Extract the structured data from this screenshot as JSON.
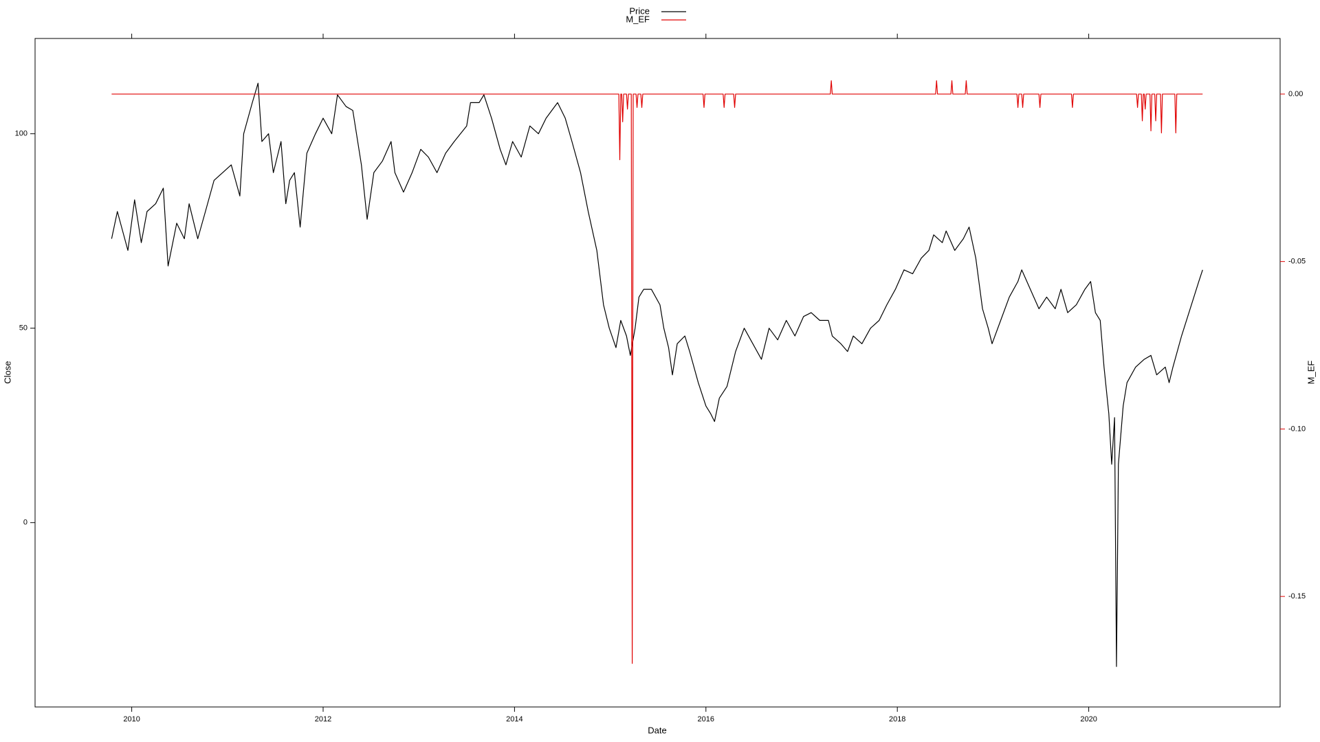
{
  "chart_data": {
    "type": "line",
    "x_label": "Date",
    "y_label": "Close",
    "y2_label": "M_EF",
    "xlim": [
      2008.99,
      2022.0
    ],
    "xticks": [
      2010,
      2012,
      2014,
      2016,
      2018,
      2020
    ],
    "ylim": [
      -47.4,
      124.5
    ],
    "yticks": [
      0,
      50,
      100
    ],
    "y2lim": [
      -0.183,
      0.0166
    ],
    "y2ticks": [
      {
        "value": 0,
        "label": "0.00"
      },
      {
        "value": -0.05,
        "label": "-0.05"
      },
      {
        "value": -0.1,
        "label": "-0.10"
      },
      {
        "value": -0.15,
        "label": "-0.15"
      }
    ],
    "y2_color": "#e00000",
    "legend": "top",
    "series": [
      {
        "name": "Price",
        "color": "#000000",
        "x": [
          2009.79,
          2009.85,
          2009.96,
          2010.03,
          2010.1,
          2010.16,
          2010.25,
          2010.33,
          2010.38,
          2010.47,
          2010.55,
          2010.6,
          2010.69,
          2010.77,
          2010.86,
          2010.95,
          2011.04,
          2011.13,
          2011.17,
          2011.26,
          2011.32,
          2011.36,
          2011.43,
          2011.48,
          2011.56,
          2011.61,
          2011.65,
          2011.7,
          2011.76,
          2011.83,
          2011.92,
          2012.0,
          2012.09,
          2012.15,
          2012.24,
          2012.31,
          2012.4,
          2012.46,
          2012.53,
          2012.62,
          2012.71,
          2012.75,
          2012.84,
          2012.93,
          2013.02,
          2013.1,
          2013.19,
          2013.28,
          2013.37,
          2013.5,
          2013.54,
          2013.63,
          2013.68,
          2013.76,
          2013.85,
          2013.91,
          2013.98,
          2014.07,
          2014.16,
          2014.25,
          2014.33,
          2014.45,
          2014.53,
          2014.6,
          2014.69,
          2014.77,
          2014.86,
          2014.93,
          2014.99,
          2015.06,
          2015.11,
          2015.17,
          2015.21,
          2015.26,
          2015.3,
          2015.35,
          2015.43,
          2015.52,
          2015.56,
          2015.61,
          2015.65,
          2015.7,
          2015.78,
          2015.83,
          2015.92,
          2016.0,
          2016.05,
          2016.09,
          2016.14,
          2016.22,
          2016.31,
          2016.4,
          2016.49,
          2016.58,
          2016.66,
          2016.75,
          2016.84,
          2016.93,
          2017.02,
          2017.1,
          2017.19,
          2017.28,
          2017.32,
          2017.41,
          2017.48,
          2017.54,
          2017.63,
          2017.72,
          2017.81,
          2017.89,
          2017.98,
          2018.07,
          2018.16,
          2018.25,
          2018.33,
          2018.38,
          2018.47,
          2018.51,
          2018.6,
          2018.69,
          2018.75,
          2018.82,
          2018.89,
          2018.95,
          2018.99,
          2019.08,
          2019.17,
          2019.26,
          2019.3,
          2019.39,
          2019.48,
          2019.56,
          2019.65,
          2019.71,
          2019.78,
          2019.87,
          2019.96,
          2020.02,
          2020.07,
          2020.12,
          2020.16,
          2020.21,
          2020.24,
          2020.27,
          2020.29,
          2020.31,
          2020.36,
          2020.4,
          2020.49,
          2020.58,
          2020.65,
          2020.71,
          2020.8,
          2020.84,
          2020.88,
          2020.97,
          2021.06,
          2021.15,
          2021.19
        ],
        "values": [
          73,
          80,
          70,
          83,
          72,
          80,
          82,
          86,
          66,
          77,
          73,
          82,
          73,
          80,
          88,
          90,
          92,
          84,
          100,
          108,
          113,
          98,
          100,
          90,
          98,
          82,
          88,
          90,
          76,
          95,
          100,
          104,
          100,
          110,
          107,
          106,
          92,
          78,
          90,
          93,
          98,
          90,
          85,
          90,
          96,
          94,
          90,
          95,
          98,
          102,
          108,
          108,
          110,
          104,
          96,
          92,
          98,
          94,
          102,
          100,
          104,
          108,
          104,
          98,
          90,
          80,
          70,
          56,
          50,
          45,
          52,
          48,
          43,
          50,
          58,
          60,
          60,
          56,
          50,
          45,
          38,
          46,
          48,
          44,
          36,
          30,
          28,
          26,
          32,
          35,
          44,
          50,
          46,
          42,
          50,
          47,
          52,
          48,
          53,
          54,
          52,
          52,
          48,
          46,
          44,
          48,
          46,
          50,
          52,
          56,
          60,
          65,
          64,
          68,
          70,
          74,
          72,
          75,
          70,
          73,
          76,
          68,
          55,
          50,
          46,
          52,
          58,
          62,
          65,
          60,
          55,
          58,
          55,
          60,
          54,
          56,
          60,
          62,
          54,
          52,
          40,
          28,
          15,
          27,
          -37,
          15,
          30,
          36,
          40,
          42,
          43,
          38,
          40,
          36,
          40,
          48,
          55,
          62,
          65
        ]
      },
      {
        "name": "M_EF",
        "color": "#e00000",
        "axis": "y2",
        "x": [
          2009.79,
          2015.09,
          2015.1,
          2015.11,
          2015.12,
          2015.13,
          2015.14,
          2015.17,
          2015.18,
          2015.19,
          2015.22,
          2015.23,
          2015.24,
          2015.27,
          2015.28,
          2015.29,
          2015.32,
          2015.33,
          2015.34,
          2015.97,
          2015.98,
          2015.99,
          2016.18,
          2016.19,
          2016.2,
          2016.29,
          2016.3,
          2016.31,
          2017.3,
          2017.31,
          2017.32,
          2018.4,
          2018.41,
          2018.42,
          2018.56,
          2018.57,
          2018.58,
          2018.71,
          2018.72,
          2018.73,
          2019.25,
          2019.26,
          2019.27,
          2019.3,
          2019.31,
          2019.32,
          2019.48,
          2019.49,
          2019.5,
          2019.82,
          2019.83,
          2019.84,
          2020.5,
          2020.51,
          2020.52,
          2020.55,
          2020.56,
          2020.57,
          2020.58,
          2020.59,
          2020.6,
          2020.64,
          2020.65,
          2020.66,
          2020.69,
          2020.7,
          2020.71,
          2020.75,
          2020.76,
          2020.77,
          2020.9,
          2020.91,
          2020.92,
          2021.19
        ],
        "values": [
          0,
          0,
          -0.0196,
          0,
          0,
          -0.0083,
          0,
          0,
          -0.0045,
          0,
          0,
          -0.17,
          0,
          0,
          -0.004,
          0,
          0,
          -0.004,
          0,
          0,
          -0.004,
          0,
          0,
          -0.004,
          0,
          0,
          -0.004,
          0,
          0,
          0.004,
          0,
          0,
          0.004,
          0,
          0,
          0.004,
          0,
          0,
          0.004,
          0,
          0,
          -0.004,
          0,
          0,
          -0.004,
          0,
          0,
          -0.004,
          0,
          0,
          -0.004,
          0,
          0,
          -0.004,
          0,
          0,
          -0.008,
          0,
          0,
          -0.0045,
          0,
          0,
          -0.011,
          0,
          0,
          -0.008,
          0,
          0,
          -0.0116,
          0,
          0,
          -0.0116,
          0,
          0
        ]
      }
    ]
  }
}
